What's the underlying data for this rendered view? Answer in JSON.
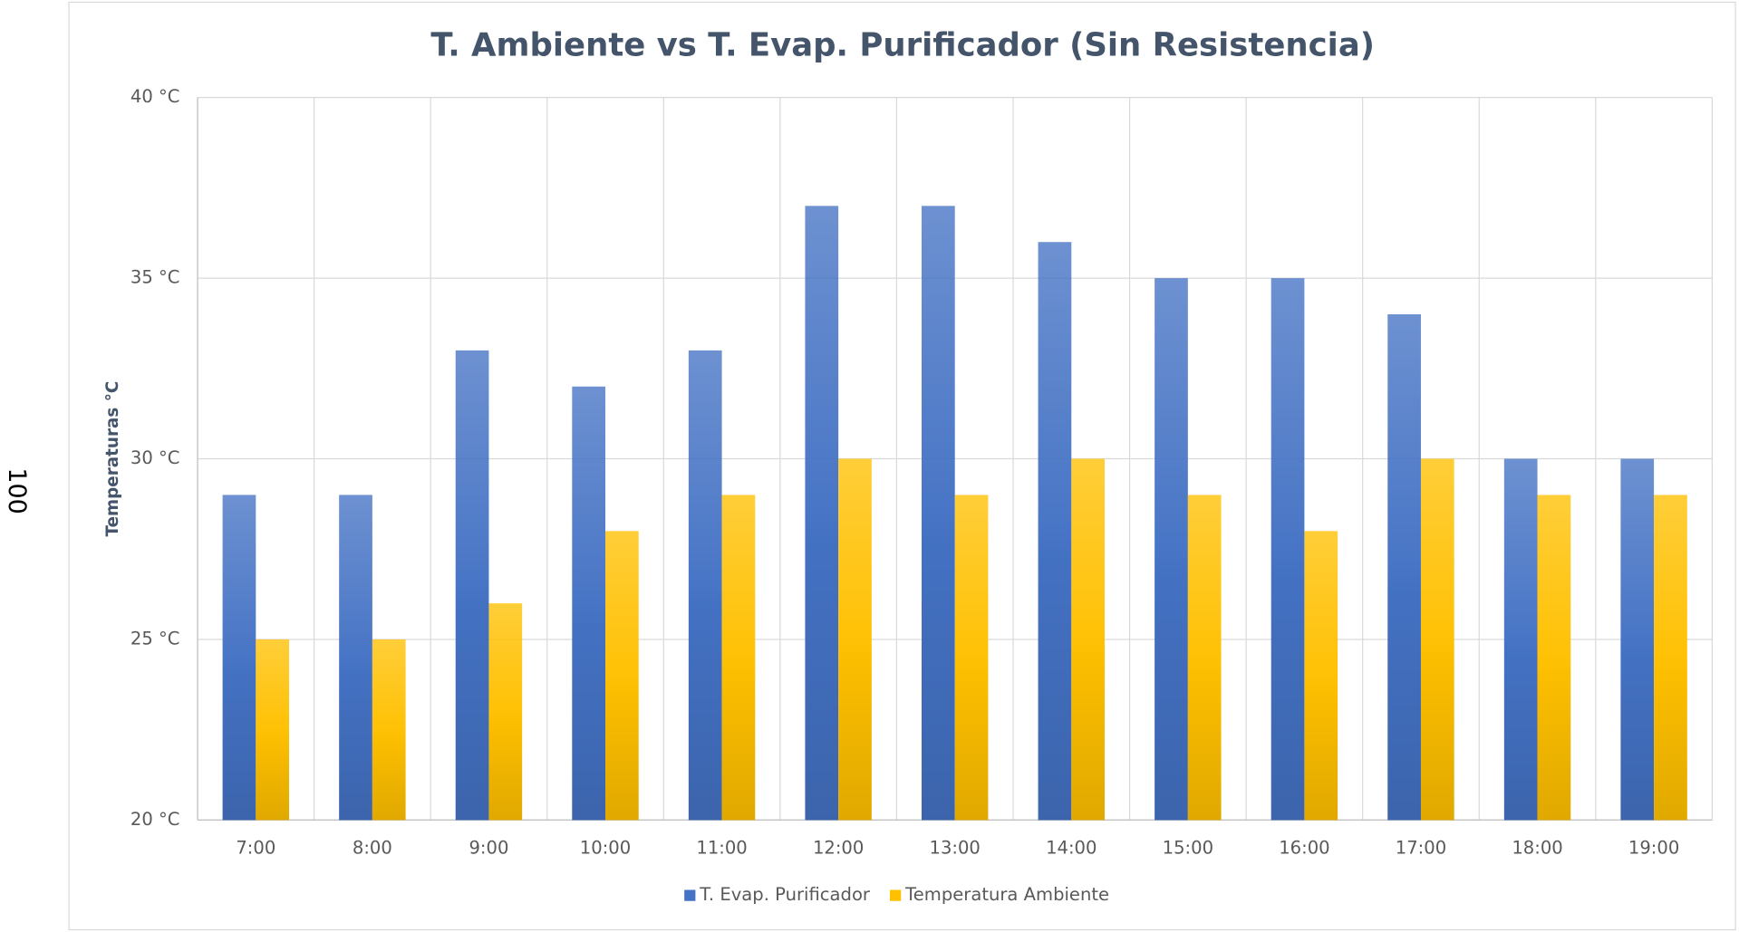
{
  "page_number": "100",
  "chart_data": {
    "type": "bar",
    "title": "T. Ambiente vs T. Evap. Purificador (Sin Resistencia)",
    "y_label": "Temperaturas °C",
    "categories": [
      "7:00",
      "8:00",
      "9:00",
      "10:00",
      "11:00",
      "12:00",
      "13:00",
      "14:00",
      "15:00",
      "16:00",
      "17:00",
      "18:00",
      "19:00"
    ],
    "series": [
      {
        "name": "T. Evap. Purificador",
        "color": "#4472c4",
        "values": [
          29,
          29,
          33,
          32,
          33,
          37,
          37,
          36,
          35,
          35,
          34,
          30,
          30
        ]
      },
      {
        "name": "Temperatura Ambiente",
        "color": "#ffc000",
        "values": [
          25,
          25,
          26,
          28,
          29,
          30,
          29,
          30,
          29,
          28,
          30,
          29,
          29
        ]
      }
    ],
    "ylim": [
      20,
      40
    ],
    "yticks": [
      {
        "value": 20,
        "label": "20 °C"
      },
      {
        "value": 25,
        "label": "25 °C"
      },
      {
        "value": 30,
        "label": "30 °C"
      },
      {
        "value": 35,
        "label": "35 °C"
      },
      {
        "value": 40,
        "label": "40 °C"
      }
    ],
    "grid": true,
    "legend": "bottom"
  }
}
